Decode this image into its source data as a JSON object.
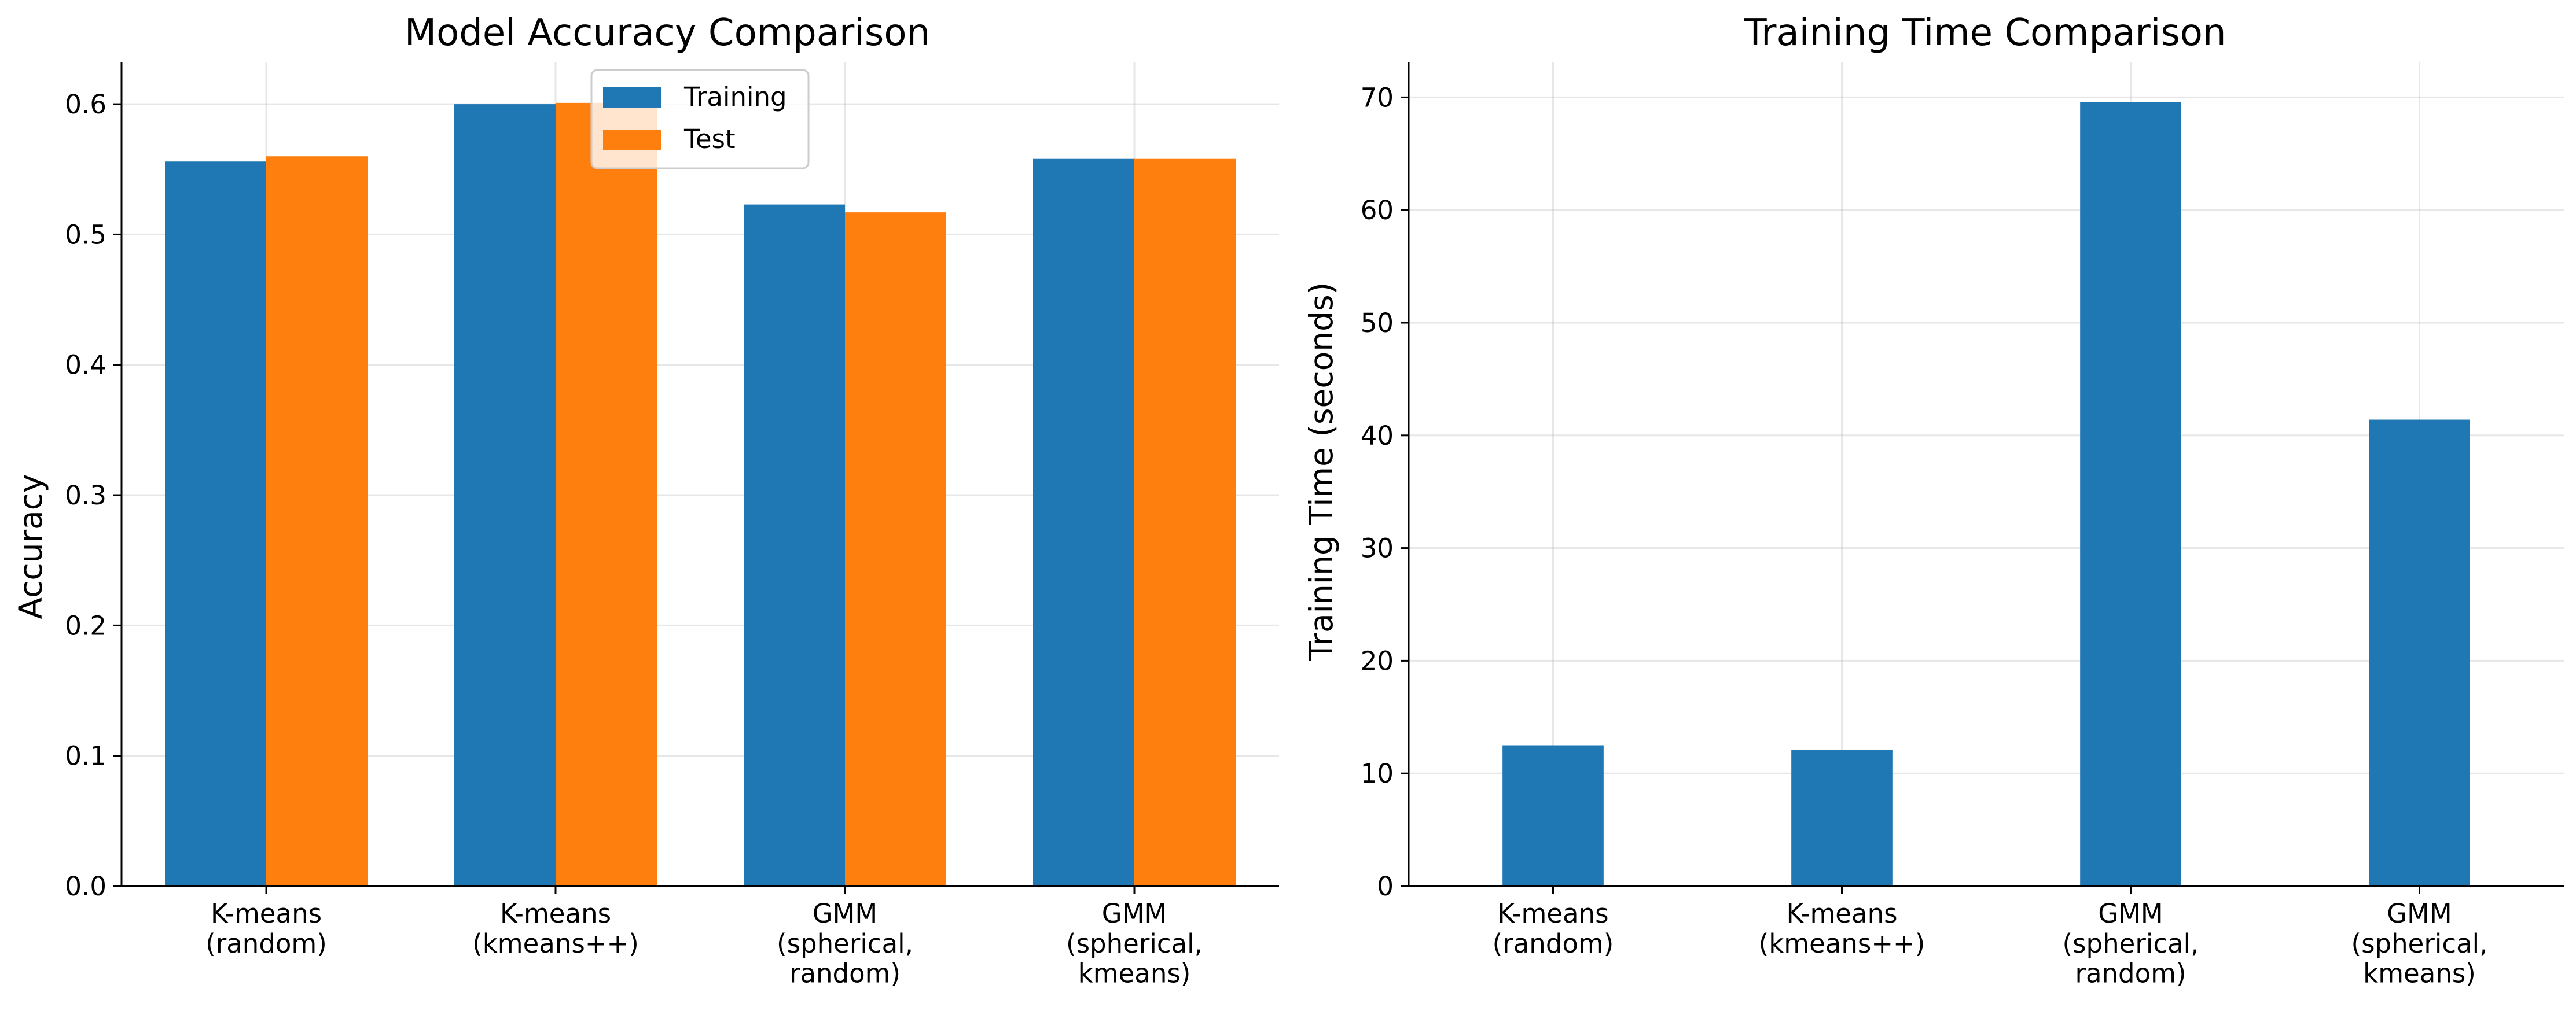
{
  "chart_data": [
    {
      "type": "bar",
      "title": "Model Accuracy Comparison",
      "xlabel": "",
      "ylabel": "Accuracy",
      "ylim": [
        0,
        0.632
      ],
      "yticks": [
        "0.0",
        "0.1",
        "0.2",
        "0.3",
        "0.4",
        "0.5",
        "0.6"
      ],
      "categories": [
        [
          "K-means",
          "(random)"
        ],
        [
          "K-means",
          "(kmeans++)"
        ],
        [
          "GMM",
          "(spherical,",
          "random)"
        ],
        [
          "GMM",
          "(spherical,",
          "kmeans)"
        ]
      ],
      "series": [
        {
          "name": "Training",
          "color": "#1f77b4",
          "values": [
            0.556,
            0.6,
            0.523,
            0.558
          ]
        },
        {
          "name": "Test",
          "color": "#ff7f0e",
          "values": [
            0.56,
            0.601,
            0.517,
            0.558
          ]
        }
      ],
      "grid": true,
      "legend": "top-center"
    },
    {
      "type": "bar",
      "title": "Training Time Comparison",
      "xlabel": "",
      "ylabel": "Training Time (seconds)",
      "ylim": [
        0,
        73.1
      ],
      "yticks": [
        "0",
        "10",
        "20",
        "30",
        "40",
        "50",
        "60",
        "70"
      ],
      "categories": [
        [
          "K-means",
          "(random)"
        ],
        [
          "K-means",
          "(kmeans++)"
        ],
        [
          "GMM",
          "(spherical,",
          "random)"
        ],
        [
          "GMM",
          "(spherical,",
          "kmeans)"
        ]
      ],
      "series": [
        {
          "color": "#1f77b4",
          "values": [
            12.5,
            12.1,
            69.6,
            41.4
          ]
        }
      ],
      "grid": true
    }
  ]
}
